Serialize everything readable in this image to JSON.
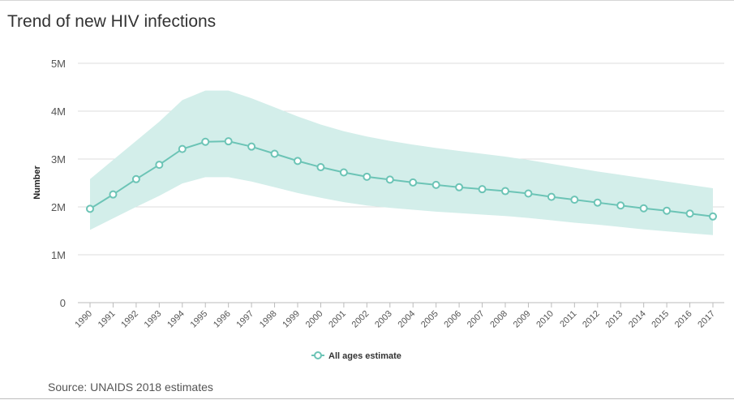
{
  "title": "Trend of new HIV infections",
  "source": "Source: UNAIDS 2018 estimates",
  "colors": {
    "line": "#6cc4b6",
    "band": "#d3eeea",
    "grid": "#dedede",
    "axis": "#bbbbbb"
  },
  "chart_data": {
    "type": "line",
    "title": "Trend of new HIV infections",
    "xlabel": "",
    "ylabel": "Number",
    "ylim": [
      0,
      5000000
    ],
    "yticks": [
      0,
      1000000,
      2000000,
      3000000,
      4000000,
      5000000
    ],
    "ytick_labels": [
      "0",
      "1M",
      "2M",
      "3M",
      "4M",
      "5M"
    ],
    "grid": true,
    "legend_position": "bottom-center",
    "categories": [
      "1990",
      "1991",
      "1992",
      "1993",
      "1994",
      "1995",
      "1996",
      "1997",
      "1998",
      "1999",
      "2000",
      "2001",
      "2002",
      "2003",
      "2004",
      "2005",
      "2006",
      "2007",
      "2008",
      "2009",
      "2010",
      "2011",
      "2012",
      "2013",
      "2014",
      "2015",
      "2016",
      "2017"
    ],
    "series": [
      {
        "name": "All ages estimate",
        "values": [
          1960000,
          2260000,
          2580000,
          2880000,
          3210000,
          3360000,
          3370000,
          3260000,
          3110000,
          2960000,
          2830000,
          2720000,
          2630000,
          2570000,
          2510000,
          2460000,
          2410000,
          2370000,
          2330000,
          2280000,
          2210000,
          2150000,
          2090000,
          2030000,
          1970000,
          1920000,
          1860000,
          1800000
        ]
      }
    ],
    "band_upper": [
      2580000,
      2980000,
      3380000,
      3780000,
      4230000,
      4430000,
      4430000,
      4270000,
      4080000,
      3890000,
      3720000,
      3580000,
      3470000,
      3380000,
      3300000,
      3230000,
      3170000,
      3110000,
      3050000,
      2980000,
      2900000,
      2820000,
      2740000,
      2670000,
      2600000,
      2530000,
      2460000,
      2390000
    ],
    "band_lower": [
      1520000,
      1760000,
      2000000,
      2230000,
      2490000,
      2620000,
      2620000,
      2530000,
      2410000,
      2290000,
      2190000,
      2100000,
      2030000,
      1980000,
      1940000,
      1900000,
      1870000,
      1840000,
      1810000,
      1770000,
      1720000,
      1670000,
      1630000,
      1580000,
      1530000,
      1490000,
      1450000,
      1410000
    ]
  }
}
